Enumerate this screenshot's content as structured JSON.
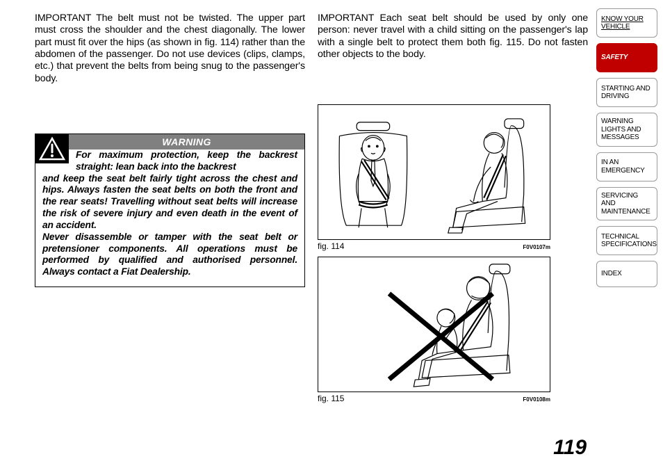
{
  "left": {
    "para1": "IMPORTANT The belt must not be twisted. The upper part must cross the shoulder and the chest diagonally. The lower part must fit over the hips (as shown in fig. 114) rather than the abdomen of the passenger. Do not use devices (clips, clamps, etc.) that prevent the belts from being snug to the passenger's body."
  },
  "warning": {
    "title": "WARNING",
    "first": "For maximum protection, keep the back­rest straight: lean back into the backrest",
    "body": "and keep the seat belt fairly tight across the chest and hips. Always fasten the seat belts on both the front and the rear seats! Travelling without seat belts will increase the risk of severe injury and even death in the event of an accident.\nNever disassemble or tamper with the seat belt or pretensioner components. All operations must be performed by qualified and authorised personnel. Always contact a Fiat Dealership."
  },
  "right": {
    "para1": "IMPORTANT Each seat belt should be used by only one person: never travel with a child sitting on the passenger's lap with a single belt to protect them both fig. 115. Do not fasten other objects to the body."
  },
  "fig114": {
    "label": "fig. 114",
    "code": "F0V0107m"
  },
  "fig115": {
    "label": "fig. 115",
    "code": "F0V0108m"
  },
  "pagenum": "119",
  "tabs": {
    "know": "KNOW YOUR VEHICLE",
    "safety": "SAFETY",
    "starting": "STARTING AND DRIVING",
    "warning": "WARNING LIGHTS AND MESSAGES",
    "emergency": "IN AN EMERGENCY",
    "servicing": "SERVICING AND MAINTENANCE",
    "technical": "TECHNICAL SPECIFICATIONS",
    "index": "INDEX"
  }
}
